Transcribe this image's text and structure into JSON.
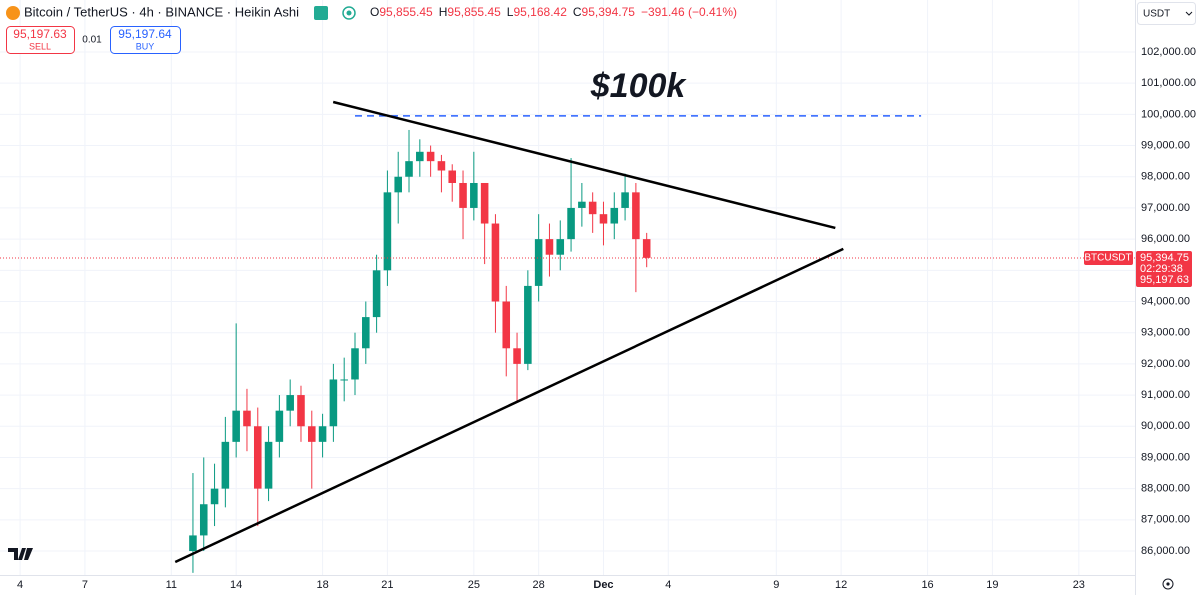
{
  "chart_data": {
    "type": "candlestick",
    "symbol_line": "Bitcoin / TetherUS · 4h · BINANCE · Heikin Ashi",
    "ohlc_header": [
      {
        "key": "O",
        "value": "95,855.45"
      },
      {
        "key": "H",
        "value": "95,855.45"
      },
      {
        "key": "L",
        "value": "95,168.42"
      },
      {
        "key": "C",
        "value": "95,394.75"
      },
      {
        "key": "",
        "value": "−391.46 (−0.41%)"
      }
    ],
    "sell": {
      "price": "95,197.63",
      "label": "SELL"
    },
    "spread": "0.01",
    "buy": {
      "price": "95,197.64",
      "label": "BUY"
    },
    "currency": "USDT",
    "price_tag": {
      "symbol": "BTCUSDT",
      "countdown": "02:29:38",
      "bid": "95,197.63"
    },
    "last_price": {
      "value": 95394.75,
      "label": "95,394.75"
    },
    "annotation": "$100k",
    "up_color": "#089981",
    "down_color": "#f23645",
    "x": [
      12,
      12.5,
      13,
      13.5,
      14,
      14.5,
      15,
      15.5,
      16,
      16.5,
      17,
      17.5,
      18,
      18.5,
      19,
      19.5,
      20,
      20.5,
      21,
      21.5,
      22,
      22.5,
      23,
      23.5,
      24,
      24.5,
      25,
      25.5,
      26,
      26.5,
      27,
      27.5,
      28,
      28.5,
      29,
      29.5,
      30,
      30.5,
      31,
      31.5,
      32,
      32.5,
      33
    ],
    "open": [
      86000,
      86500,
      87500,
      88000,
      89500,
      90500,
      90000,
      88000,
      89500,
      90500,
      91000,
      90000,
      89500,
      90000,
      91500,
      91500,
      92500,
      93500,
      95000,
      97500,
      98000,
      98500,
      98800,
      98500,
      98200,
      97800,
      97000,
      97800,
      96500,
      94000,
      92500,
      92000,
      94500,
      96000,
      95500,
      96000,
      97000,
      97200,
      96800,
      96500,
      97000,
      97500,
      96000
    ],
    "high": [
      88500,
      89000,
      88800,
      90300,
      93300,
      91200,
      90600,
      90000,
      91000,
      91500,
      91300,
      90500,
      90400,
      92000,
      92200,
      93000,
      94000,
      95500,
      98200,
      98800,
      99500,
      99200,
      99000,
      98700,
      98400,
      98200,
      98800,
      97800,
      96800,
      94500,
      93000,
      95000,
      96800,
      96500,
      96600,
      98600,
      97800,
      97500,
      97200,
      97500,
      98100,
      97800,
      96200
    ],
    "low": [
      85300,
      86000,
      86800,
      87400,
      89000,
      89200,
      86800,
      87600,
      89000,
      90000,
      89500,
      88000,
      89000,
      89500,
      90800,
      91000,
      92000,
      93000,
      94500,
      96500,
      97500,
      98000,
      98000,
      97500,
      97200,
      96000,
      96600,
      95200,
      93000,
      91600,
      90800,
      91800,
      94000,
      94800,
      95000,
      95600,
      96400,
      96200,
      95800,
      96000,
      96600,
      94300,
      95100
    ],
    "close": [
      86500,
      87500,
      88000,
      89500,
      90500,
      90000,
      88000,
      89500,
      90500,
      91000,
      90000,
      89500,
      90000,
      91500,
      91500,
      92500,
      93500,
      95000,
      97500,
      98000,
      98500,
      98800,
      98500,
      98200,
      97800,
      97000,
      97800,
      96500,
      94000,
      92500,
      92000,
      94500,
      96000,
      95500,
      96000,
      97000,
      97200,
      96800,
      96500,
      97000,
      97500,
      96000,
      95400
    ],
    "trend_lines": [
      {
        "x": [
          18.49,
          41.73
        ],
        "y": [
          100397,
          96359
        ],
        "color": "#000000"
      },
      {
        "x": [
          11.18,
          42.1
        ],
        "y": [
          85647,
          95686
        ],
        "color": "#000000"
      }
    ],
    "level_line": {
      "x": [
        19.5,
        45.7
      ],
      "y": 99950,
      "color": "#2962ff"
    },
    "xlim": [
      3.07,
      55.6
    ],
    "ylim": [
      85231,
      103667
    ],
    "xticks": [
      4,
      7,
      11,
      14,
      18,
      21,
      25,
      28,
      {
        "value": 31,
        "label": "Dec"
      },
      {
        "value": 34,
        "label": "4"
      },
      {
        "value": 39,
        "label": "9"
      },
      {
        "value": 42,
        "label": "12"
      },
      {
        "value": 46,
        "label": "16"
      },
      {
        "value": 49,
        "label": "19"
      },
      {
        "value": 53,
        "label": "23"
      }
    ],
    "yticks": [
      {
        "value": 86000,
        "label": "86,000.00"
      },
      {
        "value": 87000,
        "label": "87,000.00"
      },
      {
        "value": 88000,
        "label": "88,000.00"
      },
      {
        "value": 89000,
        "label": "89,000.00"
      },
      {
        "value": 90000,
        "label": "90,000.00"
      },
      {
        "value": 91000,
        "label": "91,000.00"
      },
      {
        "value": 92000,
        "label": "92,000.00"
      },
      {
        "value": 93000,
        "label": "93,000.00"
      },
      {
        "value": 94000,
        "label": "94,000.00"
      },
      {
        "value": 95000,
        "label": "95,000.00"
      },
      {
        "value": 96000,
        "label": "96,000.00"
      },
      {
        "value": 97000,
        "label": "97,000.00"
      },
      {
        "value": 98000,
        "label": "98,000.00"
      },
      {
        "value": 99000,
        "label": "99,000.00"
      },
      {
        "value": 100000,
        "label": "100,000.00"
      },
      {
        "value": 101000,
        "label": "101,000.00"
      },
      {
        "value": 102000,
        "label": "102,000.00"
      }
    ],
    "grid": true
  }
}
